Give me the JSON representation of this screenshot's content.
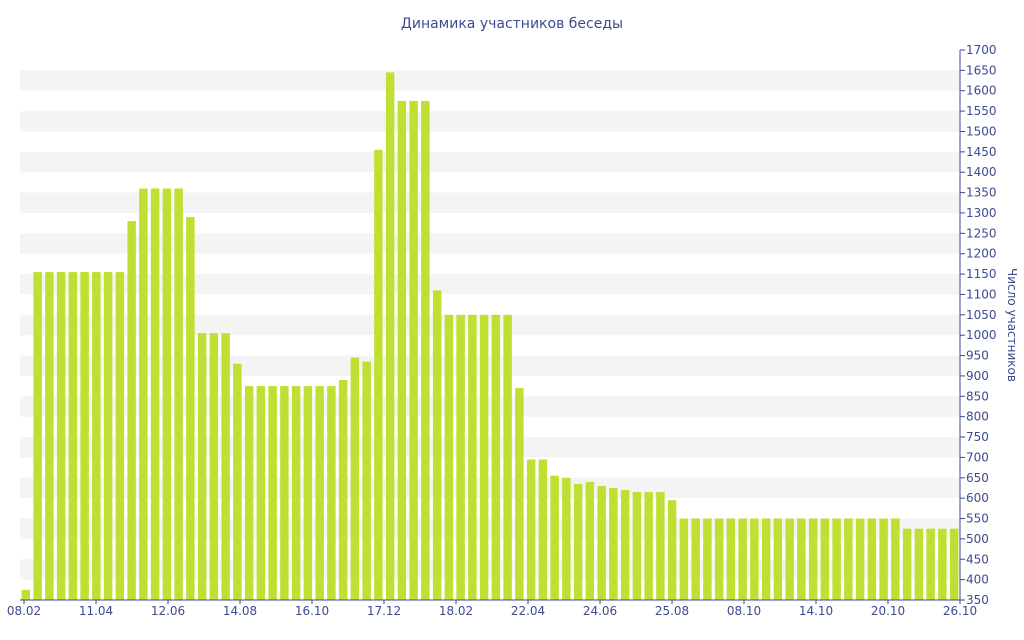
{
  "chart_data": {
    "type": "bar",
    "title": "Динамика участников беседы",
    "xlabel": "",
    "ylabel": "Число участников",
    "ylim": [
      350,
      1700
    ],
    "y_tick_step": 50,
    "y_axis_side": "right",
    "grid": "horizontal bands",
    "legend": "none",
    "colors": {
      "bar": "#bfe033",
      "band": "#f4f4f4",
      "axis": "#3d4a8f",
      "text": "#3d4a8f"
    },
    "x_tick_labels": [
      "08.02",
      "11.04",
      "12.06",
      "14.08",
      "16.10",
      "17.12",
      "18.02",
      "22.04",
      "24.06",
      "25.08",
      "08.10",
      "14.10",
      "20.10",
      "26.10"
    ],
    "values": [
      375,
      1155,
      1155,
      1155,
      1155,
      1155,
      1155,
      1155,
      1155,
      1280,
      1360,
      1360,
      1360,
      1360,
      1290,
      1005,
      1005,
      1005,
      930,
      875,
      875,
      875,
      875,
      875,
      875,
      875,
      875,
      890,
      945,
      935,
      1455,
      1645,
      1575,
      1575,
      1575,
      1110,
      1050,
      1050,
      1050,
      1050,
      1050,
      1050,
      870,
      695,
      695,
      655,
      650,
      635,
      640,
      630,
      625,
      620,
      615,
      615,
      615,
      595,
      550,
      550,
      550,
      550,
      550,
      550,
      550,
      550,
      550,
      550,
      550,
      550,
      550,
      550,
      550,
      550,
      550,
      550,
      550,
      525,
      525,
      525,
      525,
      525
    ]
  }
}
